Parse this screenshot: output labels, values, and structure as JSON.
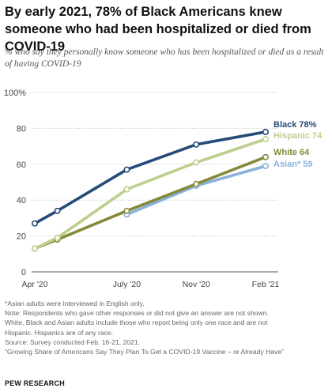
{
  "title": "By early 2021, 78% of Black Americans knew someone who had been hospitalized or died from COVID-19",
  "subtitle": "% who say they personally know someone who has been hospitalized or died as a result of having COVID-19",
  "notes": [
    "*Asian adults were interviewed in English only.",
    "Note: Respondents who gave other responses or did not give an answer are not shown.",
    "White, Black and Asian adults include those who report being only one race and are not",
    "Hispanic. Hispanics are of any race.",
    "Source: Survey conducted Feb. 16-21, 2021.",
    "“Growing Share of Americans Say They Plan To Get a COVID-19 Vaccine – or Already Have”"
  ],
  "brand": "PEW RESEARCH",
  "chart_data": {
    "type": "line",
    "x_tick_labels": [
      "Apr '20",
      "July '20",
      "Nov '20",
      "Feb '21"
    ],
    "y_tick_labels": [
      "0",
      "20",
      "40",
      "60",
      "80",
      "100%"
    ],
    "ylim": [
      0,
      100
    ],
    "y_ticks": [
      0,
      20,
      40,
      60,
      80,
      100
    ],
    "grid": "horizontal dotted",
    "series": [
      {
        "name": "Black",
        "end_label": "Black 78%",
        "color": "#254b79",
        "x": [
          "2020-04-01",
          "2020-05-01",
          "2020-08-01",
          "2020-11-01",
          "2021-02-01"
        ],
        "values": [
          27,
          34,
          57,
          71,
          78
        ]
      },
      {
        "name": "Hispanic",
        "end_label": "Hispanic 74",
        "color": "#bccf8e",
        "x": [
          "2020-04-01",
          "2020-05-01",
          "2020-08-01",
          "2020-11-01",
          "2021-02-01"
        ],
        "values": [
          13,
          19,
          46,
          61,
          74
        ]
      },
      {
        "name": "White",
        "end_label": "White 64",
        "color": "#84893a",
        "x": [
          "2020-04-01",
          "2020-05-01",
          "2020-08-01",
          "2020-11-01",
          "2021-02-01"
        ],
        "values": [
          13,
          18,
          34,
          49,
          64
        ]
      },
      {
        "name": "Asian*",
        "end_label": "Asian* 59",
        "color": "#8ab2dc",
        "x": [
          "2020-08-01",
          "2020-11-01",
          "2021-02-01"
        ],
        "values": [
          32,
          48,
          59
        ]
      }
    ]
  }
}
